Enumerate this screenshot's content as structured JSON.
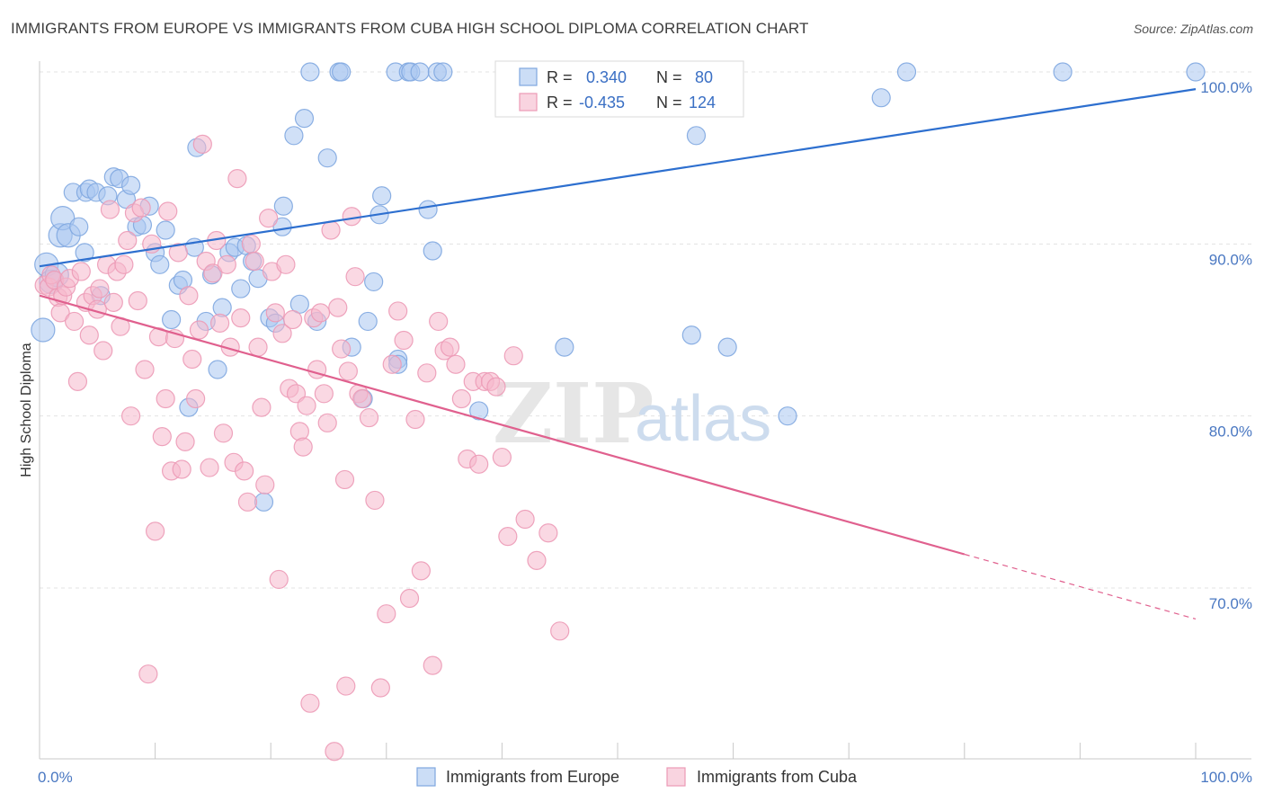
{
  "title": "IMMIGRANTS FROM EUROPE VS IMMIGRANTS FROM CUBA HIGH SCHOOL DIPLOMA CORRELATION CHART",
  "source": "Source: ZipAtlas.com",
  "watermark": {
    "zip": "ZIP",
    "atlas": "atlas"
  },
  "colors": {
    "europe": "#a9c6f0",
    "europe_line": "#2d6fcf",
    "cuba": "#f5b8cc",
    "cuba_line": "#e0608e",
    "value_text": "#3a6fc4"
  },
  "legend": {
    "rows": [
      {
        "r_label": "R =",
        "r_value": "0.340",
        "n_label": "N =",
        "n_value": "80"
      },
      {
        "r_label": "R =",
        "r_value": "-0.435",
        "n_label": "N =",
        "n_value": "124"
      }
    ]
  },
  "chart_data": {
    "type": "scatter",
    "xlabel": "",
    "ylabel": "High School Diploma",
    "xlim": [
      0,
      100
    ],
    "ylim": [
      60,
      100
    ],
    "x_tick_labels": [
      "0.0%",
      "100.0%"
    ],
    "y_ticks": [
      70,
      80,
      90,
      100
    ],
    "y_tick_labels": [
      "70.0%",
      "80.0%",
      "90.0%",
      "100.0%"
    ],
    "grid": true,
    "legend_position": "top-center",
    "series": [
      {
        "name": "Immigrants from Europe",
        "r": 0.34,
        "n": 80,
        "trend": {
          "x": [
            0,
            100
          ],
          "y": [
            88.7,
            99.0
          ],
          "solid_until": 100
        },
        "points": [
          [
            0.3,
            85.0
          ],
          [
            0.6,
            88.8
          ],
          [
            1.0,
            87.8
          ],
          [
            1.5,
            88.2
          ],
          [
            1.8,
            90.5
          ],
          [
            2.0,
            91.5
          ],
          [
            2.5,
            90.5
          ],
          [
            2.9,
            93.0
          ],
          [
            3.4,
            91.0
          ],
          [
            3.9,
            89.5
          ],
          [
            4.0,
            93.0
          ],
          [
            4.3,
            93.2
          ],
          [
            4.9,
            93.0
          ],
          [
            5.3,
            87.0
          ],
          [
            5.9,
            92.8
          ],
          [
            6.4,
            93.9
          ],
          [
            6.9,
            93.8
          ],
          [
            7.5,
            92.6
          ],
          [
            7.9,
            93.4
          ],
          [
            8.4,
            91.0
          ],
          [
            8.9,
            91.1
          ],
          [
            9.5,
            92.2
          ],
          [
            10.0,
            89.5
          ],
          [
            10.4,
            88.8
          ],
          [
            10.9,
            90.8
          ],
          [
            11.4,
            85.6
          ],
          [
            12.0,
            87.6
          ],
          [
            12.4,
            87.9
          ],
          [
            12.9,
            80.5
          ],
          [
            13.4,
            89.8
          ],
          [
            13.6,
            95.6
          ],
          [
            14.4,
            85.5
          ],
          [
            14.9,
            88.2
          ],
          [
            15.4,
            82.7
          ],
          [
            15.8,
            86.3
          ],
          [
            16.4,
            89.5
          ],
          [
            16.9,
            89.8
          ],
          [
            17.4,
            87.4
          ],
          [
            17.9,
            89.9
          ],
          [
            18.4,
            89.0
          ],
          [
            18.9,
            88.0
          ],
          [
            19.4,
            75.0
          ],
          [
            19.9,
            85.7
          ],
          [
            20.4,
            85.4
          ],
          [
            21.0,
            91.0
          ],
          [
            21.1,
            92.2
          ],
          [
            22.0,
            96.3
          ],
          [
            22.5,
            86.5
          ],
          [
            22.9,
            97.3
          ],
          [
            23.4,
            100.0
          ],
          [
            24.0,
            85.5
          ],
          [
            24.9,
            95.0
          ],
          [
            25.9,
            100.0
          ],
          [
            26.1,
            100.0
          ],
          [
            27.0,
            84.0
          ],
          [
            28.0,
            81.0
          ],
          [
            28.4,
            85.5
          ],
          [
            28.9,
            87.8
          ],
          [
            29.4,
            91.7
          ],
          [
            29.6,
            92.8
          ],
          [
            30.8,
            100.0
          ],
          [
            31.0,
            83.3
          ],
          [
            31.0,
            83.0
          ],
          [
            31.9,
            100.0
          ],
          [
            32.1,
            100.0
          ],
          [
            32.9,
            100.0
          ],
          [
            33.6,
            92.0
          ],
          [
            34.0,
            89.6
          ],
          [
            34.4,
            100.0
          ],
          [
            34.9,
            100.0
          ],
          [
            38.0,
            80.3
          ],
          [
            45.4,
            84.0
          ],
          [
            56.4,
            84.7
          ],
          [
            56.8,
            96.3
          ],
          [
            59.5,
            84.0
          ],
          [
            64.7,
            80.0
          ],
          [
            72.8,
            98.5
          ],
          [
            75.0,
            100.0
          ],
          [
            88.5,
            100.0
          ],
          [
            100.0,
            100.0
          ]
        ]
      },
      {
        "name": "Immigrants from Cuba",
        "r": -0.435,
        "n": 124,
        "trend": {
          "x": [
            0,
            100
          ],
          "y": [
            87.0,
            68.2
          ],
          "solid_until": 80
        },
        "points": [
          [
            0.4,
            87.6
          ],
          [
            0.8,
            87.5
          ],
          [
            1.0,
            88.2
          ],
          [
            1.3,
            87.9
          ],
          [
            1.6,
            86.9
          ],
          [
            1.8,
            86.0
          ],
          [
            2.0,
            87.0
          ],
          [
            2.3,
            87.5
          ],
          [
            2.6,
            88.0
          ],
          [
            3.0,
            85.5
          ],
          [
            3.3,
            82.0
          ],
          [
            3.6,
            88.4
          ],
          [
            4.0,
            86.6
          ],
          [
            4.3,
            84.7
          ],
          [
            4.6,
            87.0
          ],
          [
            5.0,
            86.2
          ],
          [
            5.2,
            87.4
          ],
          [
            5.5,
            83.8
          ],
          [
            5.8,
            88.8
          ],
          [
            6.1,
            92.0
          ],
          [
            6.4,
            86.6
          ],
          [
            6.7,
            88.4
          ],
          [
            7.0,
            85.2
          ],
          [
            7.3,
            88.8
          ],
          [
            7.6,
            90.2
          ],
          [
            7.9,
            80.0
          ],
          [
            8.2,
            91.8
          ],
          [
            8.5,
            86.7
          ],
          [
            8.8,
            92.1
          ],
          [
            9.1,
            82.7
          ],
          [
            9.4,
            65.0
          ],
          [
            9.7,
            90.0
          ],
          [
            10.0,
            73.3
          ],
          [
            10.3,
            84.6
          ],
          [
            10.6,
            78.8
          ],
          [
            10.9,
            81.0
          ],
          [
            11.1,
            91.9
          ],
          [
            11.4,
            76.8
          ],
          [
            11.7,
            84.5
          ],
          [
            12.0,
            89.5
          ],
          [
            12.3,
            76.9
          ],
          [
            12.6,
            78.5
          ],
          [
            12.9,
            87.0
          ],
          [
            13.2,
            83.3
          ],
          [
            13.5,
            81.0
          ],
          [
            13.8,
            85.0
          ],
          [
            14.1,
            95.8
          ],
          [
            14.4,
            89.0
          ],
          [
            14.7,
            77.0
          ],
          [
            15.0,
            88.3
          ],
          [
            15.3,
            90.2
          ],
          [
            15.6,
            85.4
          ],
          [
            15.9,
            79.0
          ],
          [
            16.2,
            88.8
          ],
          [
            16.5,
            84.0
          ],
          [
            16.8,
            77.3
          ],
          [
            17.1,
            93.8
          ],
          [
            17.4,
            85.7
          ],
          [
            17.7,
            76.8
          ],
          [
            18.0,
            75.0
          ],
          [
            18.3,
            90.0
          ],
          [
            18.6,
            89.0
          ],
          [
            18.9,
            84.0
          ],
          [
            19.2,
            80.5
          ],
          [
            19.5,
            76.0
          ],
          [
            19.8,
            91.5
          ],
          [
            20.1,
            88.4
          ],
          [
            20.4,
            86.0
          ],
          [
            20.7,
            70.5
          ],
          [
            21.0,
            84.8
          ],
          [
            21.3,
            88.8
          ],
          [
            21.6,
            81.6
          ],
          [
            21.9,
            85.6
          ],
          [
            22.2,
            81.3
          ],
          [
            22.5,
            79.1
          ],
          [
            22.8,
            78.2
          ],
          [
            23.1,
            80.6
          ],
          [
            23.4,
            63.3
          ],
          [
            23.7,
            85.7
          ],
          [
            24.0,
            82.7
          ],
          [
            24.3,
            86.0
          ],
          [
            24.6,
            81.3
          ],
          [
            24.9,
            79.6
          ],
          [
            25.2,
            90.8
          ],
          [
            25.5,
            60.5
          ],
          [
            25.8,
            86.3
          ],
          [
            26.1,
            83.9
          ],
          [
            26.4,
            76.3
          ],
          [
            26.7,
            82.6
          ],
          [
            27.0,
            91.6
          ],
          [
            27.3,
            88.1
          ],
          [
            27.6,
            81.3
          ],
          [
            27.9,
            81.0
          ],
          [
            28.5,
            79.9
          ],
          [
            29.0,
            75.1
          ],
          [
            29.5,
            64.2
          ],
          [
            30.0,
            68.5
          ],
          [
            30.5,
            83.0
          ],
          [
            31.0,
            86.1
          ],
          [
            31.5,
            84.4
          ],
          [
            32.0,
            69.4
          ],
          [
            32.5,
            79.8
          ],
          [
            33.0,
            71.0
          ],
          [
            33.5,
            82.5
          ],
          [
            34.0,
            65.5
          ],
          [
            34.5,
            85.5
          ],
          [
            35.0,
            83.8
          ],
          [
            35.5,
            84.0
          ],
          [
            36.0,
            83.0
          ],
          [
            36.5,
            81.0
          ],
          [
            37.0,
            77.5
          ],
          [
            37.5,
            82.0
          ],
          [
            38.0,
            77.2
          ],
          [
            38.5,
            82.0
          ],
          [
            39.0,
            82.0
          ],
          [
            39.5,
            81.7
          ],
          [
            40.0,
            77.6
          ],
          [
            40.5,
            73.0
          ],
          [
            41.0,
            83.5
          ],
          [
            42.0,
            74.0
          ],
          [
            43.0,
            71.6
          ],
          [
            44.0,
            73.2
          ],
          [
            45.0,
            67.5
          ],
          [
            26.5,
            64.3
          ]
        ]
      }
    ]
  },
  "bottom_legend": [
    {
      "label": "Immigrants from Europe"
    },
    {
      "label": "Immigrants from Cuba"
    }
  ]
}
